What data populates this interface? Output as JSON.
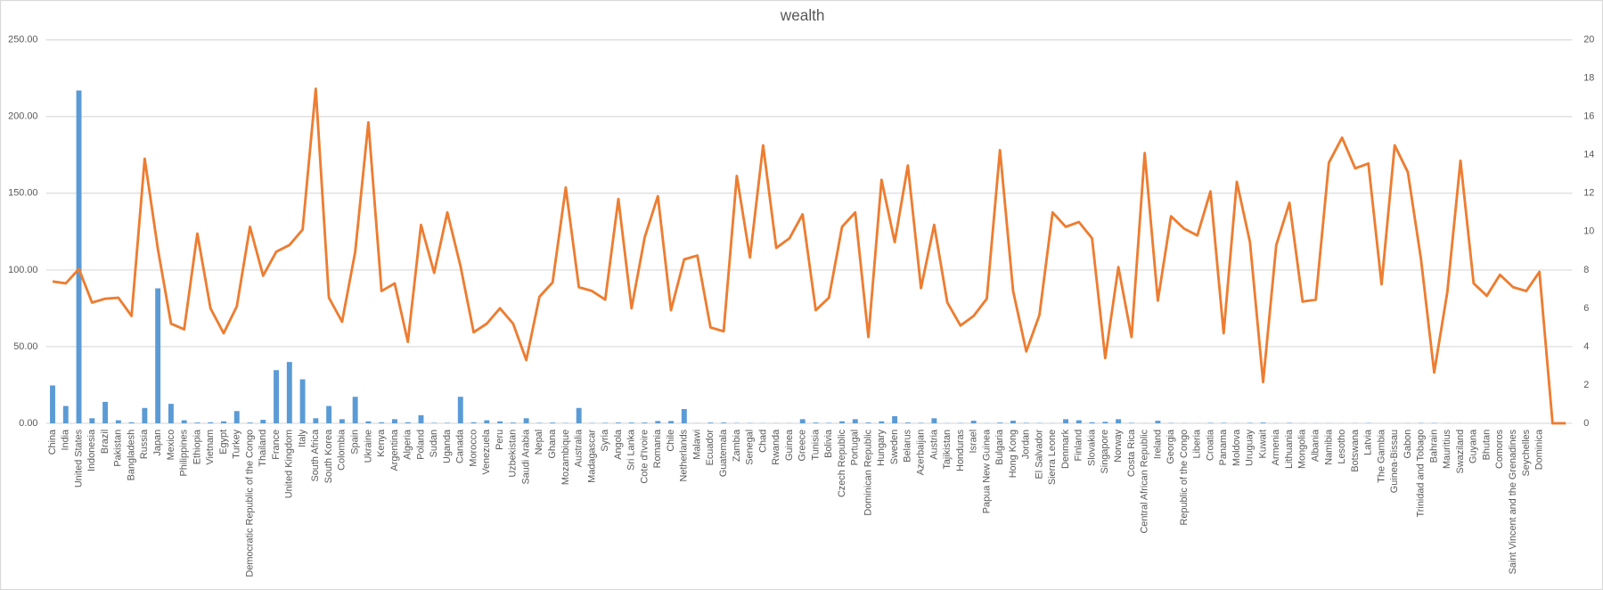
{
  "chart_data": {
    "type": "bar-line",
    "title": "wealth",
    "categories": [
      "China",
      "India",
      "United States",
      "Indonesia",
      "Brazil",
      "Pakistan",
      "Bangladesh",
      "Russia",
      "Japan",
      "Mexico",
      "Philippines",
      "Ethiopia",
      "Vietnam",
      "Egypt",
      "Turkey",
      "Democratic Republic of the Congo",
      "Thailand",
      "France",
      "United Kingdom",
      "Italy",
      "South Africa",
      "South Korea",
      "Colombia",
      "Spain",
      "Ukraine",
      "Kenya",
      "Argentina",
      "Algeria",
      "Poland",
      "Sudan",
      "Uganda",
      "Canada",
      "Morocco",
      "Venezuela",
      "Peru",
      "Uzbekistan",
      "Saudi Arabia",
      "Nepal",
      "Ghana",
      "Mozambique",
      "Australia",
      "Madagascar",
      "Syria",
      "Angola",
      "Sri Lanka",
      "Cote d'Ivoire",
      "Romania",
      "Chile",
      "Netherlands",
      "Malawi",
      "Ecuador",
      "Guatemala",
      "Zambia",
      "Senegal",
      "Chad",
      "Rwanda",
      "Guinea",
      "Greece",
      "Tunisia",
      "Bolivia",
      "Czech Republic",
      "Portugal",
      "Dominican Republic",
      "Hungary",
      "Sweden",
      "Belarus",
      "Azerbaijan",
      "Austria",
      "Tajikistan",
      "Honduras",
      "Israel",
      "Papua New Guinea",
      "Bulgaria",
      "Hong Kong",
      "Jordan",
      "El Salvador",
      "Sierra Leone",
      "Denmark",
      "Finland",
      "Slovakia",
      "Singapore",
      "Norway",
      "Costa Rica",
      "Central African Republic",
      "Ireland",
      "Georgia",
      "Republic of the Congo",
      "Liberia",
      "Croatia",
      "Panama",
      "Moldova",
      "Uruguay",
      "Kuwait",
      "Armenia",
      "Lithuania",
      "Mongolia",
      "Albania",
      "Namibia",
      "Lesotho",
      "Botswana",
      "Latvia",
      "The Gambia",
      "Guinea-Bissau",
      "Gabon",
      "Trinidad and Tobago",
      "Bahrain",
      "Mauritius",
      "Swaziland",
      "Guyana",
      "Bhutan",
      "Comoros",
      "Saint Vincent and the Grenadines",
      "Seychelles",
      "Dominica",
      null,
      null
    ],
    "series": [
      {
        "type": "bar",
        "color": "#5b9bd5",
        "values": [
          24.7,
          11.3,
          217,
          3.3,
          14,
          2,
          0.7,
          10,
          88,
          12.7,
          2,
          0.5,
          0.7,
          1.3,
          8,
          0.5,
          2.3,
          34.7,
          40,
          28.7,
          3.3,
          11.3,
          2.7,
          17.3,
          1.3,
          0.7,
          2.7,
          0.7,
          5.3,
          0.3,
          0.3,
          17.3,
          0.7,
          2,
          1.3,
          0.5,
          3.3,
          0.3,
          0.5,
          0.2,
          10,
          0.2,
          0.3,
          0.5,
          0.5,
          0.5,
          1.5,
          1.5,
          9.3,
          0.1,
          0.5,
          0.5,
          0.2,
          0.2,
          0.1,
          0.1,
          0.1,
          2.7,
          0.5,
          0.3,
          1.3,
          2.7,
          0.5,
          1.3,
          4.7,
          0.5,
          0.3,
          3.3,
          0.1,
          0.2,
          1.7,
          0.1,
          0.5,
          1.7,
          0.3,
          0.2,
          0.1,
          2.7,
          2,
          0.7,
          1,
          2.7,
          0.3,
          0.05,
          1.7,
          0.2,
          0.1,
          0.05,
          0.3,
          0.3,
          0.1,
          0.3,
          0.5,
          0.1,
          0.3,
          0.1,
          0.1,
          0.1,
          0.03,
          0.1,
          0.2,
          0.02,
          0.02,
          0.1,
          0.2,
          0.2,
          0.1,
          0.05,
          0.03,
          0.03,
          0.01,
          0.01,
          0.02,
          0.01,
          null,
          null
        ]
      },
      {
        "type": "line",
        "axis": "y2",
        "color": "#ed7d31",
        "values": [
          7.4,
          7.3,
          8.05,
          6.3,
          6.5,
          6.55,
          5.6,
          13.8,
          9.1,
          5.2,
          4.9,
          9.9,
          6.0,
          4.7,
          6.1,
          10.25,
          7.7,
          8.95,
          9.3,
          10.1,
          17.45,
          6.55,
          5.3,
          8.95,
          15.7,
          6.9,
          7.3,
          4.25,
          10.35,
          7.85,
          11,
          8.2,
          4.75,
          5.2,
          6.0,
          5.2,
          3.3,
          6.6,
          7.35,
          12.3,
          7.1,
          6.9,
          6.45,
          11.7,
          6.0,
          9.7,
          11.85,
          5.9,
          8.55,
          8.75,
          5.0,
          4.8,
          12.9,
          8.65,
          14.5,
          9.15,
          9.65,
          10.9,
          5.9,
          6.55,
          10.25,
          11,
          4.5,
          12.7,
          9.45,
          13.45,
          7.05,
          10.35,
          6.3,
          5.1,
          5.6,
          6.5,
          14.25,
          6.9,
          3.75,
          5.65,
          11,
          10.25,
          10.5,
          9.65,
          3.4,
          8.15,
          4.5,
          14.1,
          6.4,
          10.8,
          10.15,
          9.8,
          12.1,
          4.7,
          12.6,
          9.45,
          2.15,
          9.3,
          11.5,
          6.35,
          6.45,
          13.6,
          14.9,
          13.3,
          13.55,
          7.25,
          14.5,
          13.1,
          8.55,
          2.65,
          6.85,
          13.7,
          7.3,
          6.65,
          7.75,
          7.1,
          6.9,
          7.9,
          0,
          0
        ]
      }
    ],
    "ylim": [
      0,
      250
    ],
    "yticks": [
      {
        "value": 0,
        "label": "0.00"
      },
      {
        "value": 50,
        "label": "50.00"
      },
      {
        "value": 100,
        "label": "100.00"
      },
      {
        "value": 150,
        "label": "150.00"
      },
      {
        "value": 200,
        "label": "200.00"
      },
      {
        "value": 250,
        "label": "250.00"
      }
    ],
    "y2lim": [
      0,
      20
    ],
    "y2ticks": [
      0,
      2,
      4,
      6,
      8,
      10,
      12,
      14,
      16,
      18,
      20
    ],
    "grid": true
  }
}
